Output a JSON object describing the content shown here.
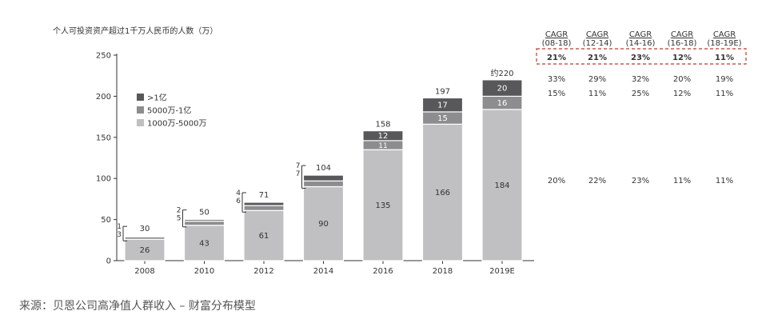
{
  "chart_data": {
    "type": "bar",
    "stacked": true,
    "title": "个人可投资资产超过1千万人民币的人数（万）",
    "categories": [
      "2008",
      "2010",
      "2012",
      "2014",
      "2016",
      "2018",
      "2019E"
    ],
    "series": [
      {
        "name": "1000万-5000万",
        "color": "#c0bfc1",
        "values": [
          26,
          43,
          61,
          90,
          135,
          166,
          184
        ]
      },
      {
        "name": "5000万-1亿",
        "color": "#8d8c8e",
        "values": [
          3,
          5,
          6,
          7,
          11,
          15,
          16
        ]
      },
      {
        "name": ">1亿",
        "color": "#58585a",
        "values": [
          1,
          2,
          4,
          7,
          12,
          17,
          20
        ]
      }
    ],
    "bar_labels": {
      "base": [
        "26",
        "43",
        "61",
        "90",
        "135",
        "166",
        "184"
      ],
      "mid": [
        "3",
        "5",
        "6",
        "7",
        "11",
        "15",
        "16"
      ],
      "top": [
        "1",
        "2",
        "4",
        "7",
        "12",
        "17",
        "20"
      ]
    },
    "totals": [
      30,
      50,
      71,
      104,
      158,
      197,
      220
    ],
    "total_labels": [
      "30",
      "50",
      "71",
      "104",
      "158",
      "197",
      "约220"
    ],
    "ylim": [
      0,
      250
    ],
    "yticks": [
      "0",
      "50",
      "100",
      "150",
      "200",
      "250"
    ],
    "legend": {
      "position": "top-left",
      "entries": [
        {
          "label": ">1亿",
          "color": "#58585a"
        },
        {
          "label": "5000万-1亿",
          "color": "#8d8c8e"
        },
        {
          "label": "1000万-5000万",
          "color": "#c0bfc1"
        }
      ]
    }
  },
  "cagr_table": {
    "headers": [
      {
        "line1": "CAGR",
        "line2": "(08-18)"
      },
      {
        "line1": "CAGR",
        "line2": "(12-14)"
      },
      {
        "line1": "CAGR",
        "line2": "(14-16)"
      },
      {
        "line1": "CAGR",
        "line2": "(16-18)"
      },
      {
        "line1": "CAGR",
        "line2": "(18-19E)"
      }
    ],
    "total_row": [
      "21%",
      "21%",
      "23%",
      "12%",
      "11%"
    ],
    "top_row": [
      "33%",
      "29%",
      "32%",
      "20%",
      "19%"
    ],
    "mid_row": [
      "15%",
      "11%",
      "25%",
      "12%",
      "11%"
    ],
    "base_row": [
      "20%",
      "22%",
      "23%",
      "11%",
      "11%"
    ],
    "highlight_color": "#c0392b"
  },
  "source": "来源：贝恩公司高净值人群收入 – 财富分布模型"
}
